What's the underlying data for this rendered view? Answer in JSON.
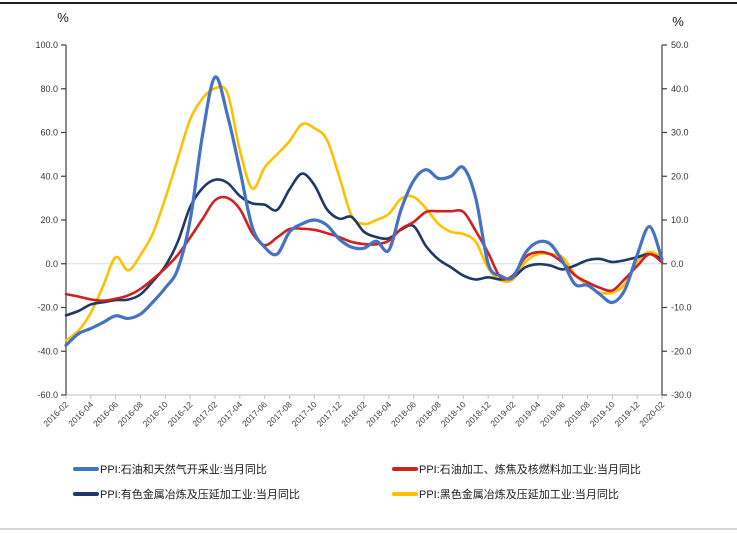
{
  "chart_data": {
    "type": "line",
    "title": "",
    "unit_label_left": "%",
    "unit_label_right": "%",
    "grid": "zero-line-only",
    "legend_position": "bottom",
    "x_tick_every": 2,
    "months": [
      "2016-02",
      "2016-03",
      "2016-04",
      "2016-05",
      "2016-06",
      "2016-07",
      "2016-08",
      "2016-09",
      "2016-10",
      "2016-11",
      "2016-12",
      "2017-01",
      "2017-02",
      "2017-03",
      "2017-04",
      "2017-05",
      "2017-06",
      "2017-07",
      "2017-08",
      "2017-09",
      "2017-10",
      "2017-11",
      "2017-12",
      "2018-01",
      "2018-02",
      "2018-03",
      "2018-04",
      "2018-05",
      "2018-06",
      "2018-07",
      "2018-08",
      "2018-09",
      "2018-10",
      "2018-11",
      "2018-12",
      "2019-01",
      "2019-02",
      "2019-03",
      "2019-04",
      "2019-05",
      "2019-06",
      "2019-07",
      "2019-08",
      "2019-09",
      "2019-10",
      "2019-11",
      "2019-12",
      "2020-01",
      "2020-02"
    ],
    "x_tick_labels": [
      "2016-02",
      "2016-04",
      "2016-06",
      "2016-08",
      "2016-10",
      "2016-12",
      "2017-02",
      "2017-04",
      "2017-06",
      "2017-08",
      "2017-10",
      "2017-12",
      "2018-02",
      "2018-04",
      "2018-06",
      "2018-08",
      "2018-10",
      "2018-12",
      "2019-02",
      "2019-04",
      "2019-06",
      "2019-08",
      "2019-10",
      "2019-12",
      "2020-02"
    ],
    "left_axis": {
      "unit": "%",
      "min": -60,
      "max": 100,
      "step": 20,
      "tick_labels": [
        "100.0",
        "80.0",
        "60.0",
        "40.0",
        "20.0",
        "0.0",
        "-20.0",
        "-40.0",
        "-60.0"
      ]
    },
    "right_axis": {
      "unit": "%",
      "min": -30,
      "max": 50,
      "step": 10,
      "tick_labels": [
        "50.0",
        "40.0",
        "30.0",
        "20.0",
        "10.0",
        "0.0",
        "-10.0",
        "-20.0",
        "-30.0"
      ]
    },
    "series": [
      {
        "label": "PPI:石油和天然气开采业:当月同比",
        "color": "#4472C4",
        "axis": "left",
        "line_width": 3.2,
        "values": [
          -37.3,
          -32.0,
          -29.6,
          -26.8,
          -23.8,
          -25.0,
          -23.0,
          -17.5,
          -11.0,
          -2.5,
          20.0,
          59.0,
          85.3,
          68.0,
          43.0,
          16.8,
          7.6,
          4.4,
          14.5,
          18.2,
          20.0,
          17.7,
          11.3,
          7.6,
          7.1,
          10.3,
          6.2,
          25.0,
          38.0,
          43.0,
          39.0,
          40.0,
          44.0,
          30.0,
          0.0,
          -5.5,
          -6.2,
          5.0,
          9.9,
          9.0,
          1.0,
          -9.4,
          -9.8,
          -14.0,
          -17.7,
          -12.0,
          4.0,
          17.0,
          2.0
        ]
      },
      {
        "label": "PPI:石油加工、炼焦及核燃料加工业:当月同比",
        "color": "#D02020",
        "axis": "left",
        "line_width": 2.6,
        "values": [
          -13.9,
          -15.0,
          -16.3,
          -16.9,
          -16.0,
          -14.5,
          -11.5,
          -7.0,
          -2.0,
          4.0,
          12.0,
          20.5,
          29.0,
          30.1,
          25.0,
          14.0,
          8.5,
          12.0,
          15.9,
          16.0,
          15.5,
          14.0,
          12.2,
          10.0,
          9.0,
          8.9,
          10.5,
          16.0,
          19.1,
          23.7,
          24.0,
          24.0,
          23.7,
          15.0,
          5.0,
          -6.2,
          -5.3,
          3.0,
          5.3,
          4.4,
          0.5,
          -5.3,
          -8.5,
          -11.0,
          -12.2,
          -7.0,
          -1.0,
          4.4,
          0.7
        ]
      },
      {
        "label": "PPI:有色金属冶炼及压延加工业:当月同比",
        "color": "#1F3864",
        "axis": "right",
        "line_width": 2.6,
        "values": [
          -11.8,
          -10.8,
          -9.3,
          -8.8,
          -8.3,
          -8.2,
          -7.0,
          -4.0,
          -0.5,
          5.0,
          13.0,
          17.3,
          19.2,
          18.5,
          15.5,
          13.8,
          13.5,
          12.3,
          17.0,
          20.6,
          18.0,
          12.5,
          10.3,
          10.7,
          7.3,
          6.1,
          5.8,
          7.8,
          8.6,
          4.0,
          1.0,
          -0.8,
          -2.7,
          -3.6,
          -3.1,
          -3.6,
          -3.1,
          -0.8,
          -0.1,
          -0.4,
          -1.3,
          -0.4,
          0.8,
          1.1,
          0.4,
          0.8,
          1.5,
          2.2,
          1.1
        ]
      },
      {
        "label": "PPI:黑色金属冶炼及压延加工业:当月同比",
        "color": "#FFC000",
        "axis": "right",
        "line_width": 2.6,
        "values": [
          -17.5,
          -15.3,
          -11.2,
          -5.0,
          1.5,
          -1.5,
          2.0,
          7.0,
          15.0,
          24.0,
          33.0,
          37.8,
          40.1,
          39.0,
          26.0,
          17.2,
          22.0,
          25.0,
          28.0,
          31.9,
          31.0,
          28.4,
          20.0,
          11.0,
          9.1,
          10.0,
          11.4,
          14.9,
          15.3,
          12.6,
          9.1,
          7.3,
          6.8,
          5.0,
          -1.0,
          -3.8,
          -3.6,
          0.4,
          2.2,
          2.2,
          1.5,
          -2.5,
          -5.0,
          -6.6,
          -6.6,
          -4.7,
          0.5,
          2.7,
          1.5
        ]
      }
    ]
  }
}
